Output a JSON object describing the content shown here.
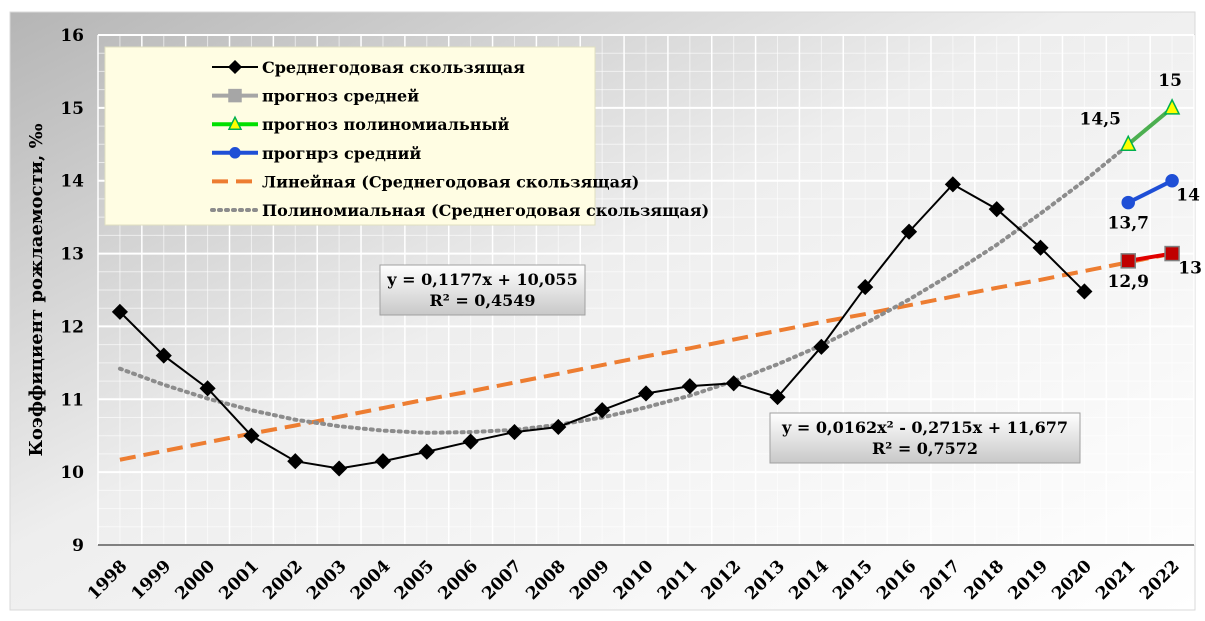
{
  "chart_data": {
    "type": "line",
    "y_label": "Коэффициент рожлаемости, ‰",
    "categories": [
      "1998",
      "1999",
      "2000",
      "2001",
      "2002",
      "2003",
      "2004",
      "2005",
      "2006",
      "2007",
      "2008",
      "2009",
      "2010",
      "2011",
      "2012",
      "2013",
      "2014",
      "2015",
      "2016",
      "2017",
      "2018",
      "2019",
      "2020",
      "2021",
      "2022"
    ],
    "ylim": [
      9,
      16
    ],
    "yticks": [
      9,
      10,
      11,
      12,
      13,
      14,
      15,
      16
    ],
    "grid": true,
    "legend": "top-left",
    "series": [
      {
        "name": "Среднегодовая скользящая",
        "color": "#000000",
        "marker": "diamond",
        "marker_color": "#000000",
        "line_style": "solid",
        "values": [
          12.2,
          11.6,
          11.15,
          10.5,
          10.15,
          10.05,
          10.15,
          10.28,
          10.42,
          10.55,
          10.62,
          10.85,
          11.08,
          11.18,
          11.22,
          11.03,
          11.72,
          12.54,
          13.3,
          13.95,
          13.61,
          13.08,
          12.48,
          null,
          null
        ]
      },
      {
        "name": "прогноз средней",
        "color": "#a6a6a6",
        "marker": "square",
        "marker_color": "#c00000",
        "line_color": "#e00000",
        "line_style": "solid",
        "values": [
          null,
          null,
          null,
          null,
          null,
          null,
          null,
          null,
          null,
          null,
          null,
          null,
          null,
          null,
          null,
          null,
          null,
          null,
          null,
          null,
          null,
          null,
          null,
          12.9,
          13
        ],
        "value_labels": [
          null,
          null,
          null,
          null,
          null,
          null,
          null,
          null,
          null,
          null,
          null,
          null,
          null,
          null,
          null,
          null,
          null,
          null,
          null,
          null,
          null,
          null,
          null,
          "12,9",
          "13"
        ]
      },
      {
        "name": "прогноз полиномиальный",
        "color": "#00e000",
        "marker": "triangle",
        "marker_color": "#ffff00",
        "line_color": "#4caf50",
        "line_style": "solid",
        "values": [
          null,
          null,
          null,
          null,
          null,
          null,
          null,
          null,
          null,
          null,
          null,
          null,
          null,
          null,
          null,
          null,
          null,
          null,
          null,
          null,
          null,
          null,
          null,
          14.5,
          15
        ],
        "value_labels": [
          null,
          null,
          null,
          null,
          null,
          null,
          null,
          null,
          null,
          null,
          null,
          null,
          null,
          null,
          null,
          null,
          null,
          null,
          null,
          null,
          null,
          null,
          null,
          "14,5",
          "15"
        ]
      },
      {
        "name": "прогнрз средний",
        "color": "#1f4fd6",
        "marker": "circle",
        "marker_color": "#1f4fd6",
        "line_style": "solid",
        "values": [
          null,
          null,
          null,
          null,
          null,
          null,
          null,
          null,
          null,
          null,
          null,
          null,
          null,
          null,
          null,
          null,
          null,
          null,
          null,
          null,
          null,
          null,
          null,
          13.7,
          14
        ],
        "value_labels": [
          null,
          null,
          null,
          null,
          null,
          null,
          null,
          null,
          null,
          null,
          null,
          null,
          null,
          null,
          null,
          null,
          null,
          null,
          null,
          null,
          null,
          null,
          null,
          "13,7",
          "14"
        ]
      },
      {
        "name": "Линейная (Среднегодовая скользящая)",
        "color": "#ed7d31",
        "marker": null,
        "line_style": "dashed",
        "values": [
          10.17,
          10.29,
          10.41,
          10.53,
          10.64,
          10.76,
          10.88,
          11.0,
          11.11,
          11.23,
          11.35,
          11.47,
          11.59,
          11.7,
          11.82,
          11.94,
          12.06,
          12.17,
          12.29,
          12.41,
          12.53,
          12.64,
          12.76,
          12.88,
          13.0
        ]
      },
      {
        "name": "Полиномиальная (Среднегодовая скользящая)",
        "color": "#8c8c8c",
        "marker": null,
        "line_style": "dotted",
        "values": [
          11.42,
          11.2,
          11.01,
          10.85,
          10.72,
          10.63,
          10.57,
          10.54,
          10.55,
          10.58,
          10.65,
          10.75,
          10.89,
          11.05,
          11.25,
          11.48,
          11.74,
          12.04,
          12.37,
          12.73,
          13.12,
          13.55,
          14.0,
          14.49,
          null
        ]
      }
    ],
    "annotations": [
      {
        "lines": [
          "y = 0,1177x + 10,055",
          "R² = 0,4549"
        ]
      },
      {
        "lines": [
          "y = 0,0162x² - 0,2715x + 11,677",
          "R² = 0,7572"
        ]
      }
    ]
  }
}
